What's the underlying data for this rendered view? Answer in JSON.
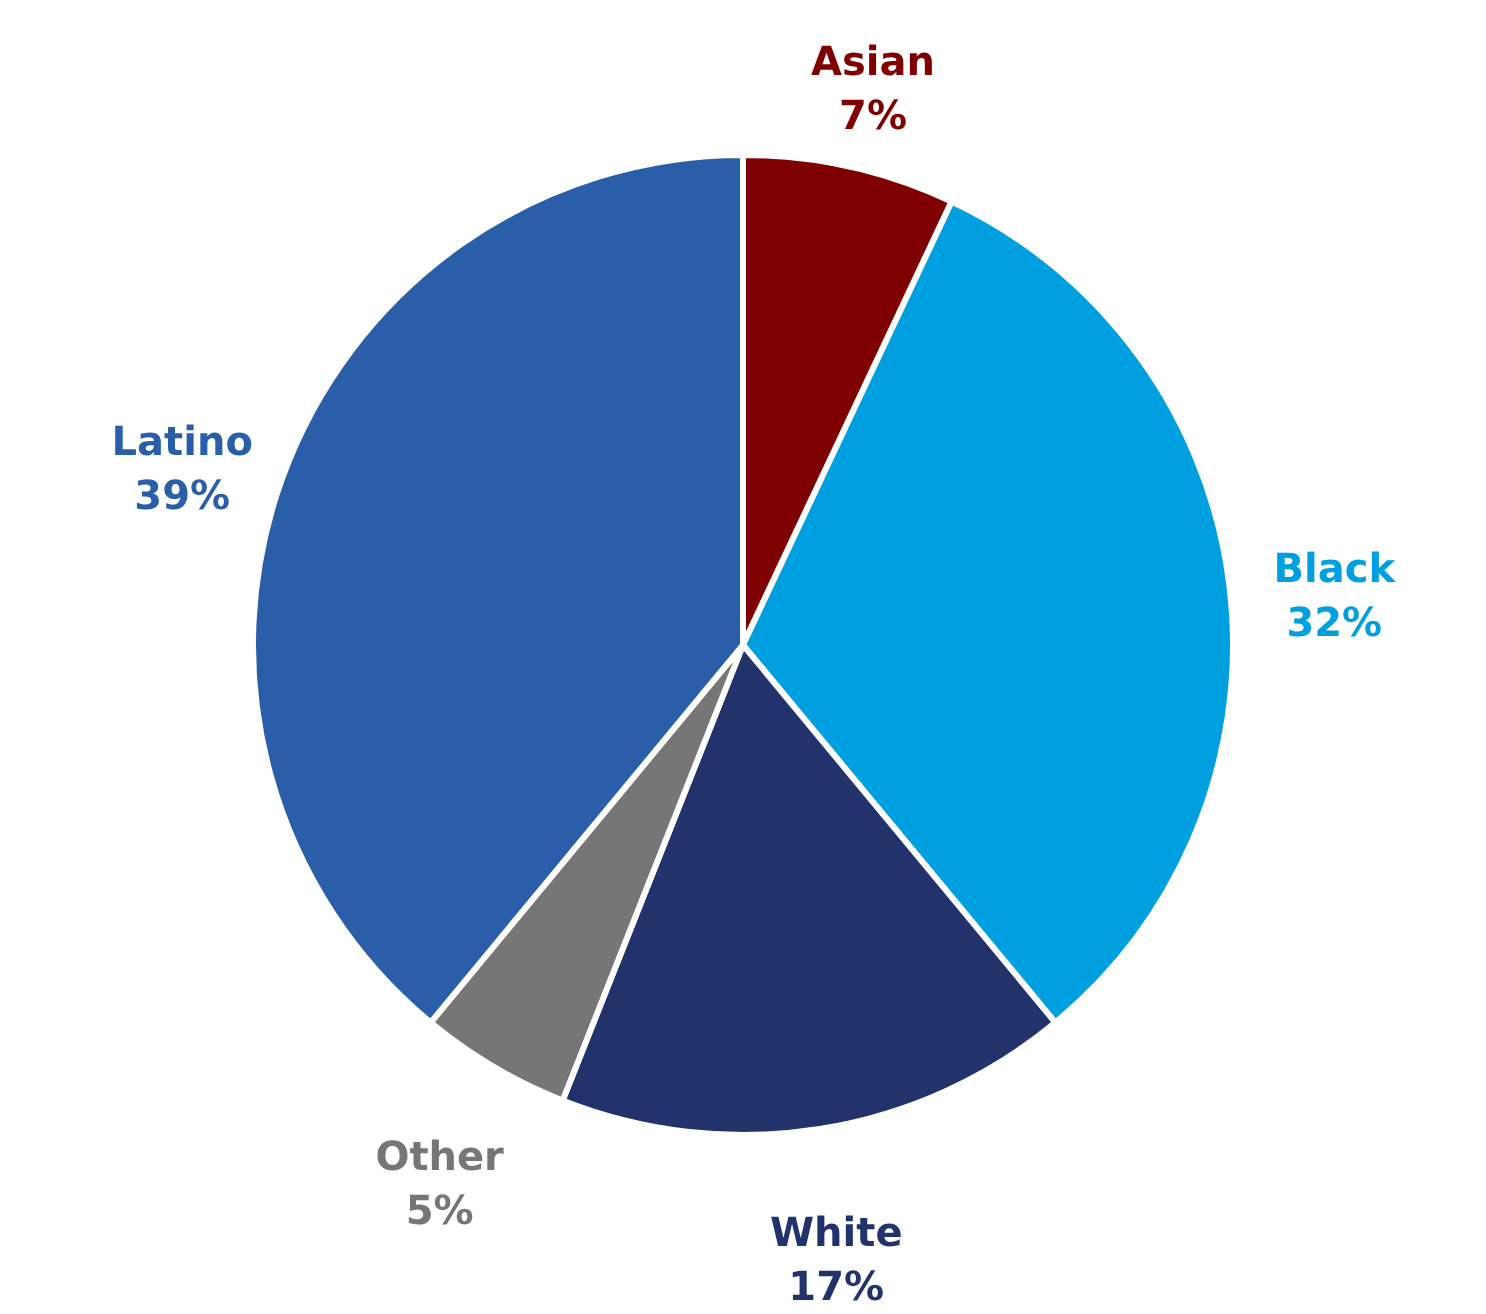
{
  "chart_data": {
    "type": "pie",
    "categories": [
      "Asian",
      "Black",
      "White",
      "Other",
      "Latino"
    ],
    "values": [
      7,
      32,
      17,
      5,
      39
    ],
    "value_labels": [
      "7%",
      "32%",
      "17%",
      "5%",
      "39%"
    ],
    "colors": [
      "#7f0000",
      "#009fdf",
      "#22336b",
      "#767676",
      "#2b5ea8"
    ]
  }
}
